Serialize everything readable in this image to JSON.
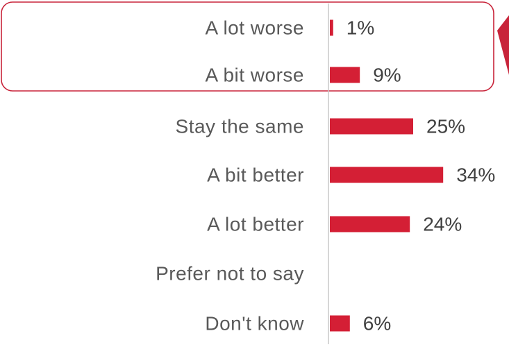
{
  "chart_data": {
    "type": "bar",
    "orientation": "horizontal",
    "categories": [
      "A lot worse",
      "A bit worse",
      "Stay the same",
      "A bit better",
      "A lot better",
      "Prefer not to say",
      "Don't know"
    ],
    "values": [
      1,
      9,
      25,
      34,
      24,
      0,
      6
    ],
    "value_labels": [
      "1%",
      "9%",
      "25%",
      "34%",
      "24%",
      "",
      "6%"
    ],
    "unit": "%",
    "grid": false,
    "highlight": {
      "categories": [
        "A lot worse",
        "A bit worse"
      ],
      "style": "rounded outline with pointer"
    }
  },
  "colors": {
    "bar": "#d41f35",
    "highlight": "#c8243a",
    "axis": "#c8c8c8"
  }
}
